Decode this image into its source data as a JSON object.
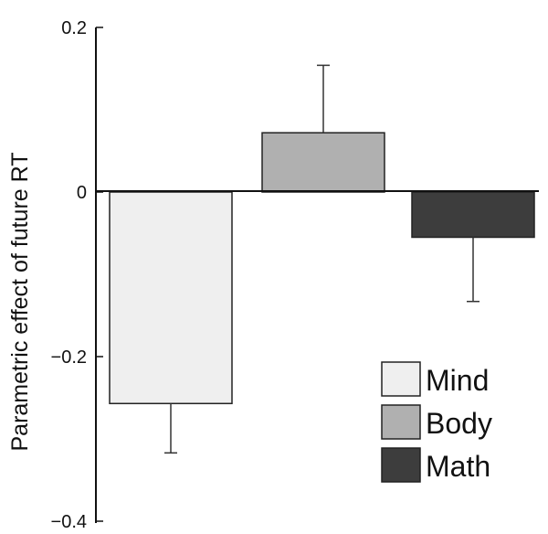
{
  "chart_data": {
    "type": "bar",
    "title": "",
    "xlabel": "",
    "ylabel": "Parametric effect of future RT",
    "ylim": [
      -0.4,
      0.2
    ],
    "yticks": [
      0.2,
      0,
      -0.2,
      -0.4
    ],
    "ytick_labels": [
      "0.2",
      "0",
      "−0.2",
      "−0.4"
    ],
    "grid": false,
    "legend_position": "bottom-right",
    "series": [
      {
        "name": "Mind",
        "value": -0.257,
        "error": 0.06,
        "color": "#efefef"
      },
      {
        "name": "Body",
        "value": 0.072,
        "error": 0.082,
        "color": "#b0b0b0"
      },
      {
        "name": "Math",
        "value": -0.055,
        "error": 0.078,
        "color": "#3d3d3d"
      }
    ]
  }
}
